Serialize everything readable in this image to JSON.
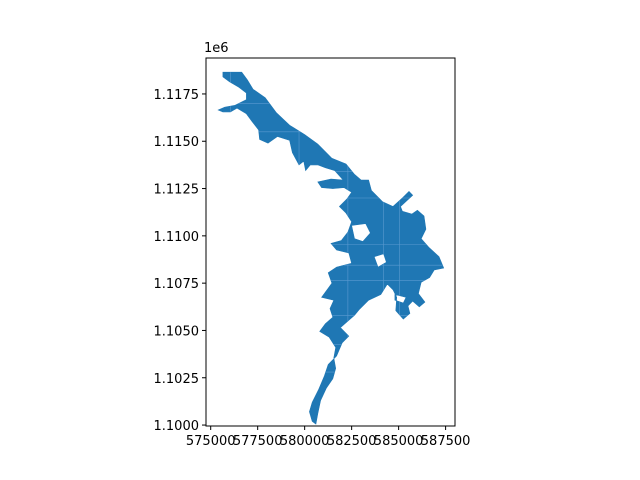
{
  "chart_data": {
    "type": "map",
    "title": "",
    "xlabel": "",
    "ylabel": "",
    "y_offset_label": "1e6",
    "x_ticks": [
      {
        "value": 575000,
        "label": "575000"
      },
      {
        "value": 577500,
        "label": "577500"
      },
      {
        "value": 580000,
        "label": "580000"
      },
      {
        "value": 582500,
        "label": "582500"
      },
      {
        "value": 585000,
        "label": "585000"
      },
      {
        "value": 587500,
        "label": "587500"
      }
    ],
    "y_ticks": [
      {
        "value": 1100000,
        "label": "1.1000"
      },
      {
        "value": 1102500,
        "label": "1.1025"
      },
      {
        "value": 1105000,
        "label": "1.1050"
      },
      {
        "value": 1107500,
        "label": "1.1075"
      },
      {
        "value": 1110000,
        "label": "1.1100"
      },
      {
        "value": 1112500,
        "label": "1.1125"
      },
      {
        "value": 1115000,
        "label": "1.1150"
      },
      {
        "value": 1117500,
        "label": "1.1175"
      }
    ],
    "xlim": [
      574750,
      588000
    ],
    "ylim": [
      1099950,
      1119400
    ],
    "grid": false,
    "fill_color": "#1f77b4",
    "edge_color": "#5a9ad0",
    "polygon": [
      [
        575650,
        1118650
      ],
      [
        576650,
        1118650
      ],
      [
        576950,
        1118250
      ],
      [
        577250,
        1117750
      ],
      [
        577900,
        1117300
      ],
      [
        578500,
        1116500
      ],
      [
        579200,
        1115850
      ],
      [
        580000,
        1115350
      ],
      [
        580700,
        1114850
      ],
      [
        581450,
        1114100
      ],
      [
        582200,
        1113800
      ],
      [
        582650,
        1113250
      ],
      [
        583000,
        1112950
      ],
      [
        583400,
        1112950
      ],
      [
        583550,
        1112400
      ],
      [
        584150,
        1111800
      ],
      [
        584700,
        1111550
      ],
      [
        585200,
        1112000
      ],
      [
        585550,
        1112350
      ],
      [
        585750,
        1112150
      ],
      [
        585100,
        1111550
      ],
      [
        585200,
        1111300
      ],
      [
        585700,
        1111150
      ],
      [
        586000,
        1111350
      ],
      [
        586350,
        1111050
      ],
      [
        586450,
        1110350
      ],
      [
        586200,
        1109850
      ],
      [
        586600,
        1109400
      ],
      [
        587150,
        1108900
      ],
      [
        587400,
        1108300
      ],
      [
        586900,
        1108200
      ],
      [
        586650,
        1107800
      ],
      [
        586200,
        1107550
      ],
      [
        586050,
        1106950
      ],
      [
        586400,
        1106500
      ],
      [
        586100,
        1106250
      ],
      [
        585750,
        1106550
      ],
      [
        585500,
        1106300
      ],
      [
        585600,
        1105900
      ],
      [
        585250,
        1105600
      ],
      [
        584850,
        1106050
      ],
      [
        584900,
        1106750
      ],
      [
        584700,
        1107150
      ],
      [
        584400,
        1107450
      ],
      [
        584050,
        1106900
      ],
      [
        583400,
        1106600
      ],
      [
        582900,
        1106100
      ],
      [
        582650,
        1105800
      ],
      [
        582300,
        1105500
      ],
      [
        581900,
        1105150
      ],
      [
        582350,
        1104700
      ],
      [
        582000,
        1104350
      ],
      [
        581700,
        1103650
      ],
      [
        581250,
        1103200
      ],
      [
        581050,
        1102600
      ],
      [
        580750,
        1101900
      ],
      [
        580400,
        1101200
      ],
      [
        580250,
        1100700
      ],
      [
        580400,
        1100200
      ],
      [
        580600,
        1100050
      ],
      [
        580700,
        1100600
      ],
      [
        580850,
        1101300
      ],
      [
        581150,
        1101950
      ],
      [
        581500,
        1102450
      ],
      [
        581650,
        1103000
      ],
      [
        581550,
        1103550
      ],
      [
        581650,
        1104100
      ],
      [
        581300,
        1104650
      ],
      [
        580800,
        1104950
      ],
      [
        581100,
        1105350
      ],
      [
        581500,
        1105700
      ],
      [
        581350,
        1106150
      ],
      [
        581550,
        1106600
      ],
      [
        580900,
        1106750
      ],
      [
        581450,
        1107500
      ],
      [
        581250,
        1108050
      ],
      [
        581700,
        1108350
      ],
      [
        582500,
        1108550
      ],
      [
        582350,
        1109100
      ],
      [
        581700,
        1109250
      ],
      [
        581400,
        1109600
      ],
      [
        581950,
        1109750
      ],
      [
        582300,
        1110200
      ],
      [
        582500,
        1110750
      ],
      [
        582200,
        1111200
      ],
      [
        581850,
        1111550
      ],
      [
        582250,
        1111950
      ],
      [
        582500,
        1112300
      ],
      [
        582100,
        1112550
      ],
      [
        581500,
        1112500
      ],
      [
        580900,
        1112550
      ],
      [
        580700,
        1112850
      ],
      [
        581400,
        1113000
      ],
      [
        582050,
        1112950
      ],
      [
        581600,
        1113450
      ],
      [
        581100,
        1113600
      ],
      [
        580700,
        1113750
      ],
      [
        580300,
        1113750
      ],
      [
        580050,
        1113450
      ],
      [
        579950,
        1113950
      ],
      [
        579700,
        1113750
      ],
      [
        579350,
        1114400
      ],
      [
        579200,
        1115050
      ],
      [
        578550,
        1115250
      ],
      [
        578050,
        1114900
      ],
      [
        577600,
        1115100
      ],
      [
        577550,
        1115600
      ],
      [
        577200,
        1116050
      ],
      [
        576900,
        1116450
      ],
      [
        576400,
        1116750
      ],
      [
        576050,
        1116550
      ],
      [
        575650,
        1116550
      ],
      [
        575400,
        1116650
      ],
      [
        575750,
        1116800
      ],
      [
        576300,
        1116900
      ],
      [
        576900,
        1117200
      ],
      [
        576900,
        1117550
      ],
      [
        576500,
        1117850
      ],
      [
        576000,
        1118150
      ],
      [
        575650,
        1118400
      ]
    ],
    "holes": [
      [
        [
          582500,
          1110550
        ],
        [
          583250,
          1110650
        ],
        [
          583500,
          1110150
        ],
        [
          583100,
          1109700
        ],
        [
          582650,
          1109850
        ]
      ],
      [
        [
          583700,
          1108900
        ],
        [
          584200,
          1109050
        ],
        [
          584350,
          1108600
        ],
        [
          583900,
          1108350
        ]
      ],
      [
        [
          584800,
          1106900
        ],
        [
          585400,
          1106750
        ],
        [
          585250,
          1106450
        ],
        [
          584800,
          1106600
        ]
      ]
    ],
    "grid_lines_x": [
      576050,
      579700,
      582300,
      584200,
      585050
    ],
    "grid_lines_y": [
      1102800,
      1104250,
      1105800,
      1107650,
      1108450,
      1109550,
      1112000,
      1113400,
      1115500,
      1117000
    ]
  }
}
